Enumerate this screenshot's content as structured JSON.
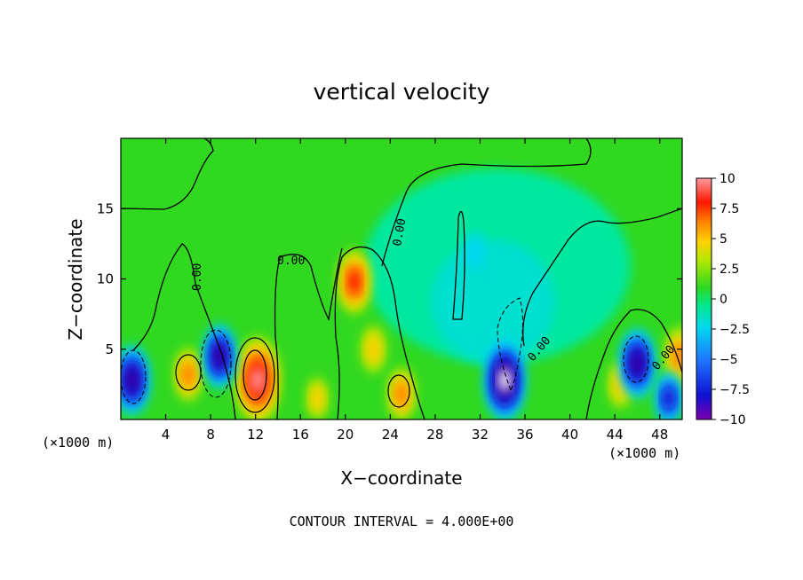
{
  "chart_data": {
    "type": "heatmap",
    "title": "vertical velocity",
    "xlabel": "X−coordinate",
    "ylabel": "Z−coordinate",
    "x_unit_left": "(×1000 m)",
    "x_unit_right": "(×1000 m)",
    "footer": "CONTOUR INTERVAL = 4.000E+00",
    "xlim": [
      0,
      50
    ],
    "ylim": [
      0,
      20
    ],
    "x_ticks": [
      4,
      8,
      12,
      16,
      20,
      24,
      28,
      32,
      36,
      40,
      44,
      48
    ],
    "y_ticks": [
      5,
      10,
      15
    ],
    "zero_contour_label": "0.00",
    "colorbar": {
      "range": [
        -10,
        10
      ],
      "tick_labels": [
        "10",
        "7.5",
        "5",
        "2.5",
        "0",
        "−2.5",
        "−5",
        "−7.5",
        "−10"
      ],
      "colors": [
        "#7a00b0",
        "#1010d0",
        "#1e78ff",
        "#00d8f0",
        "#00e890",
        "#30d820",
        "#b4e800",
        "#ffd000",
        "#ff8000",
        "#ff1800",
        "#ff9aa0"
      ]
    },
    "features": [
      {
        "kind": "up",
        "x": 12.2,
        "z": 2.8,
        "amplitude": 11
      },
      {
        "kind": "up",
        "x": 20.8,
        "z": 9.8,
        "amplitude": 7
      },
      {
        "kind": "up",
        "x": 6.0,
        "z": 3.2,
        "amplitude": 5
      },
      {
        "kind": "up",
        "x": 25.0,
        "z": 1.8,
        "amplitude": 5
      },
      {
        "kind": "up",
        "x": 22.5,
        "z": 5.0,
        "amplitude": 4
      },
      {
        "kind": "up",
        "x": 44.5,
        "z": 2.5,
        "amplitude": 4
      },
      {
        "kind": "up",
        "x": 49.8,
        "z": 4.5,
        "amplitude": 6
      },
      {
        "kind": "up",
        "x": 17.5,
        "z": 1.5,
        "amplitude": 3
      },
      {
        "kind": "down",
        "x": 1.0,
        "z": 2.8,
        "amplitude": -8
      },
      {
        "kind": "down",
        "x": 8.8,
        "z": 4.5,
        "amplitude": -7
      },
      {
        "kind": "down",
        "x": 34.2,
        "z": 2.8,
        "amplitude": -10
      },
      {
        "kind": "down",
        "x": 46.0,
        "z": 4.0,
        "amplitude": -8
      },
      {
        "kind": "down",
        "x": 48.8,
        "z": 1.5,
        "amplitude": -5
      },
      {
        "kind": "down",
        "x": 31.5,
        "z": 12.0,
        "amplitude": -2
      }
    ]
  }
}
